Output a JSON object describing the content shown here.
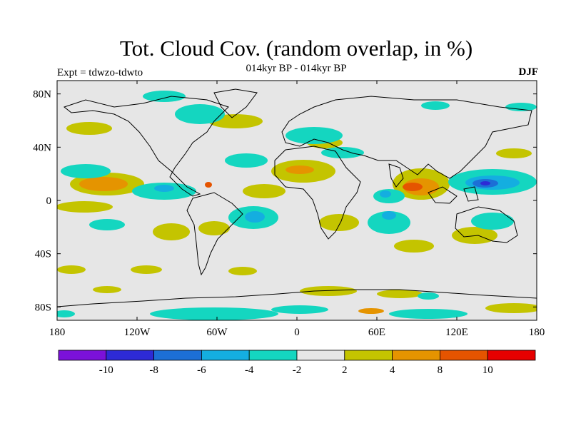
{
  "title": "Tot. Cloud Cov. (random overlap, in %)",
  "subtitle": "014kyr BP - 014kyr BP",
  "experiment": "Expt = tdwzo-tdwto",
  "season": "DJF",
  "map": {
    "projection": "cylindrical equidistant",
    "lon_range": [
      -180,
      180
    ],
    "lat_range": [
      -90,
      90
    ],
    "background_color": "#e6e6e6",
    "y_tick_labels": [
      "80N",
      "40N",
      "0",
      "40S",
      "80S"
    ],
    "x_tick_labels": [
      "180",
      "120W",
      "60W",
      "0",
      "60E",
      "120E",
      "180"
    ]
  },
  "colorbar": {
    "labels": [
      "-10",
      "-8",
      "-6",
      "-4",
      "-2",
      "2",
      "4",
      "8",
      "10"
    ],
    "colors": [
      "#7b11d9",
      "#2d2ad6",
      "#1c6fd6",
      "#14aee0",
      "#14d6c0",
      "#e6e6e6",
      "#c4c400",
      "#e59400",
      "#e55400",
      "#e60000"
    ]
  }
}
